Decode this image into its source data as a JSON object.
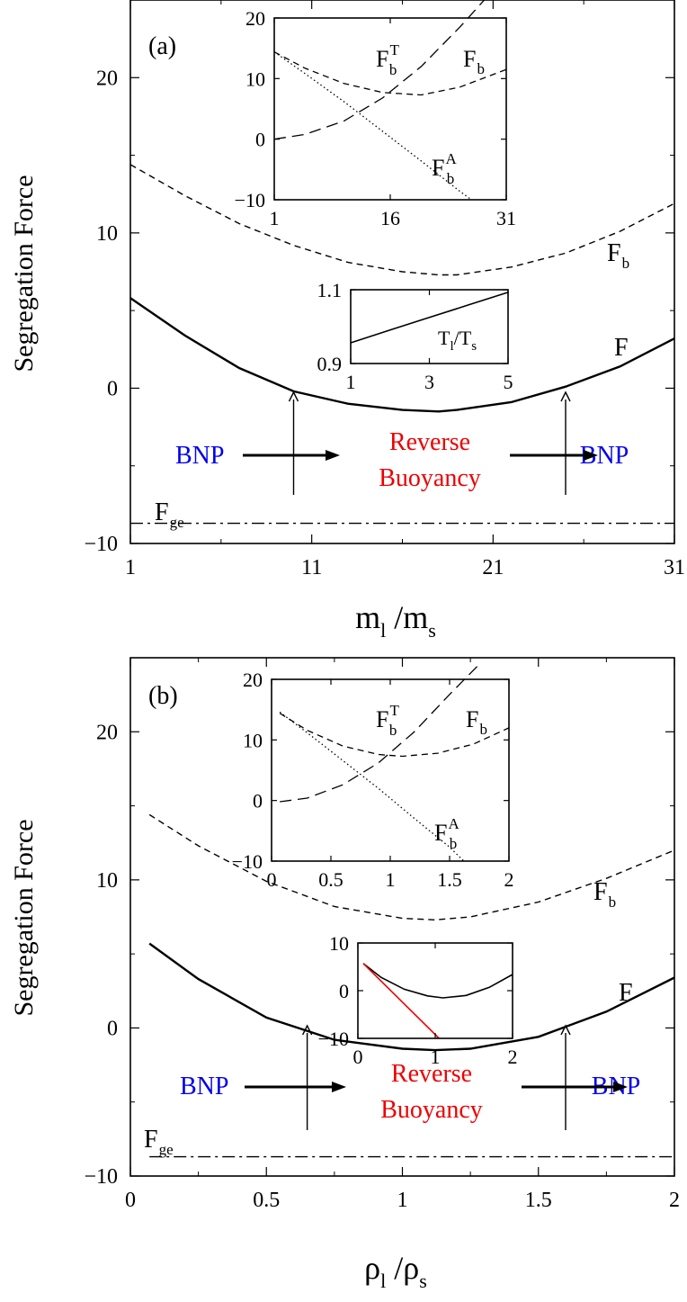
{
  "chart_data": [
    {
      "type": "line",
      "panel_label": "(a)",
      "xlabel": "m_l / m_s",
      "xlabel_parts": {
        "main1": "m",
        "sub1": "l",
        "slash": " /",
        "main2": "m",
        "sub2": "s"
      },
      "ylabel": "Segregation Force",
      "xlim": [
        1,
        31
      ],
      "ylim": [
        -10,
        25
      ],
      "xticks": [
        1,
        11,
        21,
        31
      ],
      "yticks": [
        -10,
        0,
        10,
        20
      ],
      "xtick_labels": [
        "1",
        "11",
        "21",
        "31"
      ],
      "ytick_labels": [
        "−10",
        "0",
        "10",
        "20"
      ],
      "series": [
        {
          "name": "F_b",
          "style": "dashed",
          "label": {
            "main": "F",
            "sub": "b"
          },
          "x": [
            1,
            4,
            7,
            10,
            13,
            16,
            18,
            19,
            22,
            25,
            28,
            31
          ],
          "y": [
            14.4,
            12.4,
            10.6,
            9.2,
            8.1,
            7.5,
            7.3,
            7.3,
            7.8,
            8.7,
            10.1,
            11.9
          ]
        },
        {
          "name": "F",
          "style": "solid",
          "label": {
            "main": "F",
            "sub": ""
          },
          "x": [
            1,
            4,
            7,
            10,
            13,
            16,
            18,
            19,
            22,
            25,
            28,
            31
          ],
          "y": [
            5.8,
            3.4,
            1.3,
            -0.2,
            -1.0,
            -1.4,
            -1.5,
            -1.4,
            -0.9,
            0.1,
            1.4,
            3.2
          ]
        },
        {
          "name": "F_ge",
          "style": "dashdot",
          "label": {
            "main": "F",
            "sub": "ge"
          },
          "x": [
            1,
            31
          ],
          "y": [
            -8.7,
            -8.7
          ]
        }
      ],
      "annotations": {
        "left": "BNP",
        "middle_line1": "Reverse",
        "middle_line2": "Buoyancy",
        "right": "BNP",
        "arrow_x": [
          10,
          25
        ],
        "colors": {
          "bnp": "#0000ee",
          "reverse": "#ee0000"
        }
      },
      "insets": [
        {
          "position": "top",
          "xlim": [
            1,
            31
          ],
          "ylim": [
            -10,
            20
          ],
          "xticks": [
            1,
            16,
            31
          ],
          "yticks": [
            -10,
            0,
            10,
            20
          ],
          "xtick_labels": [
            "1",
            "16",
            "31"
          ],
          "ytick_labels": [
            "−10",
            "0",
            "10",
            "20"
          ],
          "series": [
            {
              "name": "F_b^T",
              "style": "dashed-long",
              "label": {
                "main": "F",
                "sub": "b",
                "sup": "T"
              },
              "x": [
                1,
                5,
                10,
                15,
                20,
                25,
                31
              ],
              "y": [
                0,
                0.8,
                3,
                6.8,
                12,
                18.5,
                27
              ]
            },
            {
              "name": "F_b",
              "style": "dashed",
              "label": {
                "main": "F",
                "sub": "b"
              },
              "x": [
                1,
                5,
                10,
                15,
                20,
                25,
                31
              ],
              "y": [
                14.4,
                11.7,
                9.2,
                7.7,
                7.3,
                8.6,
                11.5
              ]
            },
            {
              "name": "F_b^A",
              "style": "dotted",
              "label": {
                "main": "F",
                "sub": "b",
                "sup": "A"
              },
              "x": [
                1,
                5,
                10,
                15,
                20,
                25,
                26.5
              ],
              "y": [
                14.4,
                10.8,
                6.2,
                1.3,
                -3.6,
                -8.6,
                -10
              ]
            }
          ]
        },
        {
          "position": "middle",
          "xlim": [
            1,
            5
          ],
          "ylim": [
            0.9,
            1.1
          ],
          "xticks": [
            1,
            3,
            5
          ],
          "yticks": [
            0.9,
            1.1
          ],
          "xtick_labels": [
            "1",
            "3",
            "5"
          ],
          "ytick_labels": [
            "0.9",
            "1.1"
          ],
          "series_label": {
            "main1": "T",
            "sub1": "l",
            "slash": "/",
            "main2": "T",
            "sub2": "s"
          },
          "series": [
            {
              "name": "T_l/T_s",
              "style": "solid",
              "x": [
                1,
                2,
                3,
                4,
                5
              ],
              "y": [
                0.956,
                0.991,
                1.025,
                1.059,
                1.093
              ]
            }
          ]
        }
      ]
    },
    {
      "type": "line",
      "panel_label": "(b)",
      "xlabel": "ρ_l / ρ_s",
      "xlabel_parts": {
        "main1": "ρ",
        "sub1": "l",
        "slash": " /",
        "main2": "ρ",
        "sub2": "s"
      },
      "ylabel": "Segregation Force",
      "xlim": [
        0,
        2
      ],
      "ylim": [
        -10,
        25
      ],
      "xticks": [
        0,
        0.5,
        1,
        1.5,
        2
      ],
      "yticks": [
        -10,
        0,
        10,
        20
      ],
      "xtick_labels": [
        "0",
        "0.5",
        "1",
        "1.5",
        "2"
      ],
      "ytick_labels": [
        "−10",
        "0",
        "10",
        "20"
      ],
      "series": [
        {
          "name": "F_b",
          "style": "dashed",
          "label": {
            "main": "F",
            "sub": "b"
          },
          "x": [
            0.07,
            0.25,
            0.5,
            0.75,
            1.0,
            1.12,
            1.25,
            1.5,
            1.75,
            2.0
          ],
          "y": [
            14.4,
            12.3,
            9.9,
            8.2,
            7.4,
            7.3,
            7.5,
            8.5,
            10.1,
            12.0
          ]
        },
        {
          "name": "F",
          "style": "solid",
          "label": {
            "main": "F",
            "sub": ""
          },
          "x": [
            0.07,
            0.25,
            0.5,
            0.75,
            1.0,
            1.12,
            1.25,
            1.5,
            1.75,
            2.0
          ],
          "y": [
            5.7,
            3.3,
            0.7,
            -0.8,
            -1.4,
            -1.5,
            -1.4,
            -0.6,
            1.1,
            3.4
          ]
        },
        {
          "name": "F_ge",
          "style": "dashdot",
          "label": {
            "main": "F",
            "sub": "ge"
          },
          "x": [
            0.07,
            2.0
          ],
          "y": [
            -8.7,
            -8.7
          ]
        }
      ],
      "annotations": {
        "left": "BNP",
        "middle_line1": "Reverse",
        "middle_line2": "Buoyancy",
        "right": "BNP",
        "arrow_x": [
          0.65,
          1.6
        ],
        "colors": {
          "bnp": "#0000ee",
          "reverse": "#ee0000"
        }
      },
      "insets": [
        {
          "position": "top",
          "xlim": [
            0,
            2
          ],
          "ylim": [
            -10,
            20
          ],
          "xticks": [
            0,
            0.5,
            1,
            1.5,
            2
          ],
          "yticks": [
            -10,
            0,
            10,
            20
          ],
          "xtick_labels": [
            "0",
            "0.5",
            "1",
            "1.5",
            "2"
          ],
          "ytick_labels": [
            "−10",
            "0",
            "10",
            "20"
          ],
          "series": [
            {
              "name": "F_b^T",
              "style": "dashed-long",
              "label": {
                "main": "F",
                "sub": "b",
                "sup": "T"
              },
              "x": [
                0.07,
                0.3,
                0.6,
                0.9,
                1.2,
                1.5,
                1.75
              ],
              "y": [
                -0.2,
                0.4,
                2.6,
                6.2,
                11.3,
                17.5,
                22.5
              ]
            },
            {
              "name": "F_b",
              "style": "dashed",
              "label": {
                "main": "F",
                "sub": "b"
              },
              "x": [
                0.07,
                0.3,
                0.6,
                0.9,
                1.1,
                1.4,
                1.7,
                2.0
              ],
              "y": [
                14.4,
                11.6,
                9.0,
                7.6,
                7.3,
                7.8,
                9.3,
                12.0
              ]
            },
            {
              "name": "F_b^A",
              "style": "dotted",
              "label": {
                "main": "F",
                "sub": "b",
                "sup": "A"
              },
              "x": [
                0.07,
                0.3,
                0.6,
                0.9,
                1.2,
                1.5,
                1.62
              ],
              "y": [
                14.6,
                11.2,
                6.6,
                2.0,
                -2.9,
                -7.7,
                -10
              ]
            }
          ]
        },
        {
          "position": "middle",
          "xlim": [
            0,
            2
          ],
          "ylim": [
            -10,
            10
          ],
          "xticks": [
            0,
            1,
            2
          ],
          "yticks": [
            -10,
            0,
            10
          ],
          "xtick_labels": [
            "0",
            "1",
            "2"
          ],
          "ytick_labels": [
            "−10",
            "0",
            "10"
          ],
          "series": [
            {
              "name": "F",
              "style": "solid",
              "color": "#000000",
              "x": [
                0.07,
                0.3,
                0.6,
                0.9,
                1.1,
                1.4,
                1.7,
                2.0
              ],
              "y": [
                5.7,
                2.8,
                0.3,
                -1.1,
                -1.5,
                -1.0,
                0.7,
                3.4
              ]
            },
            {
              "name": "linear",
              "style": "solid",
              "color": "#ee0000",
              "x": [
                0.07,
                1.05
              ],
              "y": [
                5.7,
                -10
              ]
            }
          ]
        }
      ]
    }
  ]
}
